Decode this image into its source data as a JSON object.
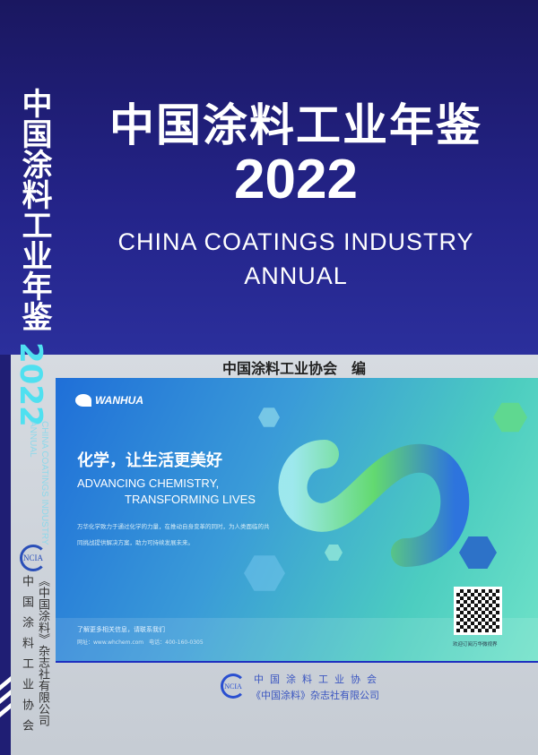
{
  "cover": {
    "title_cn": "中国涂料工业年鉴",
    "year": "2022",
    "title_en_line1": "CHINA COATINGS INDUSTRY",
    "title_en_line2": "ANNUAL",
    "editor": "中国涂料工业协会　编"
  },
  "spine": {
    "title_cn": "中国涂料工业年鉴",
    "year": "2022",
    "title_en_line1": "CHINA COATINGS INDUSTRY",
    "title_en_line2": "ANNUAL",
    "logo": "NCIA",
    "publisher1": "《中国涂料》杂志社有限公司",
    "publisher2": "中国涂料工业协会"
  },
  "ad": {
    "brand": "WANHUA",
    "slogan_cn": "化学，让生活更美好",
    "slogan_en_line1": "ADVANCING CHEMISTRY,",
    "slogan_en_line2": "TRANSFORMING LIVES",
    "description": "万华化学致力于通过化学的力量，在推动自身变革的同时，为人类面临的共同挑战提供解决方案，助力可持续发展未来。",
    "contact_heading": "了解更多相关信息，请联系我们",
    "contact_line": "网址：www.whchem.com　电话：400-160-0305",
    "qr_caption": "欢迎订阅万华微视界"
  },
  "footer": {
    "logo": "NCIA",
    "publisher1": "中国涂料工业协会",
    "publisher2": "《中国涂料》杂志社有限公司"
  },
  "colors": {
    "navy": "#1f1e74",
    "cyan": "#4fe0f0",
    "accent_blue": "#2a4fd0"
  }
}
